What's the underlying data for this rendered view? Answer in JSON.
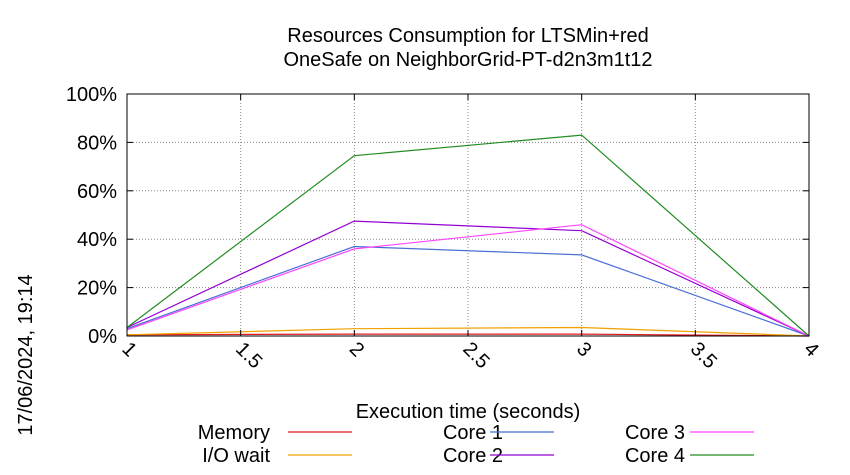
{
  "chart_data": {
    "type": "line",
    "title_line1": "Resources Consumption for LTSMin+red",
    "title_line2": "OneSafe on NeighborGrid-PT-d2n3m1t12",
    "xlabel": "Execution time (seconds)",
    "timestamp": "17/06/2024, 19:14",
    "x_ticks": [
      "1",
      "1.5",
      "2",
      "2.5",
      "3",
      "3.5",
      "4"
    ],
    "y_ticks": [
      "0%",
      "20%",
      "40%",
      "60%",
      "80%",
      "100%"
    ],
    "xlim": [
      1,
      4
    ],
    "ylim": [
      0,
      100
    ],
    "grid": true,
    "legend_position": "bottom",
    "x": [
      1,
      2,
      3,
      4
    ],
    "series": [
      {
        "name": "Memory",
        "color": "#e41a1c",
        "values": [
          0.5,
          0.8,
          0.8,
          0
        ]
      },
      {
        "name": "I/O wait",
        "color": "#f0a000",
        "values": [
          0.5,
          3,
          3.5,
          0
        ]
      },
      {
        "name": "Core 1",
        "color": "#4a6fd4",
        "values": [
          3,
          37,
          33.5,
          0
        ]
      },
      {
        "name": "Core 2",
        "color": "#9400d3",
        "values": [
          3.5,
          47.5,
          43.5,
          0
        ]
      },
      {
        "name": "Core 3",
        "color": "#ff44ff",
        "values": [
          2.5,
          36,
          46,
          0
        ]
      },
      {
        "name": "Core 4",
        "color": "#228b22",
        "values": [
          3.5,
          74.5,
          83,
          0
        ]
      }
    ]
  }
}
